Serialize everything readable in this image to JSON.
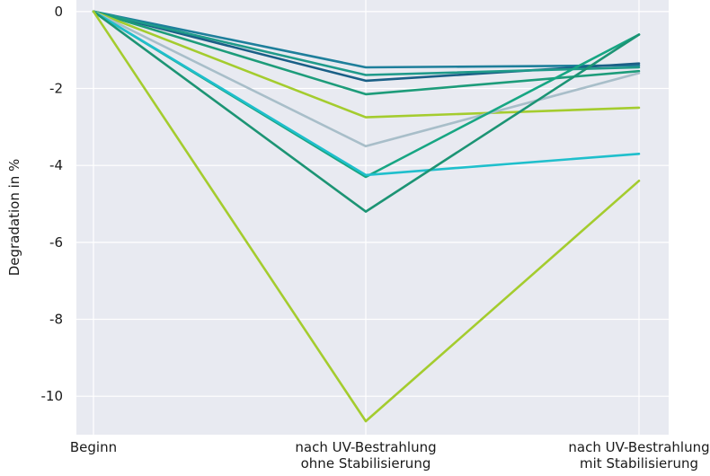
{
  "chart_data": {
    "type": "line",
    "ylabel": "Degradation in %",
    "xlabel": "",
    "title": "",
    "categories": [
      [
        "Beginn"
      ],
      [
        "nach UV-Bestrahlung",
        "ohne Stabilisierung"
      ],
      [
        "nach UV-Bestrahlung",
        "mit Stabilisierung"
      ]
    ],
    "ylim": [
      -11,
      0.3
    ],
    "yticks": [
      0,
      -2,
      -4,
      -6,
      -8,
      -10
    ],
    "grid": true,
    "series": [
      {
        "color": "#1e7f9b",
        "values": [
          0,
          -1.45,
          -1.4
        ]
      },
      {
        "color": "#1a5f86",
        "values": [
          0,
          -1.8,
          -1.35
        ]
      },
      {
        "color": "#1f9a8a",
        "values": [
          0,
          -1.65,
          -1.45
        ]
      },
      {
        "color": "#1d9c7a",
        "values": [
          0,
          -2.15,
          -1.55
        ]
      },
      {
        "color": "#a4cc2e",
        "values": [
          0,
          -2.75,
          -2.5
        ]
      },
      {
        "color": "#a8bec9",
        "values": [
          0,
          -3.5,
          -1.6
        ]
      },
      {
        "color": "#17a683",
        "values": [
          0,
          -4.3,
          -0.6
        ]
      },
      {
        "color": "#1fbfcc",
        "values": [
          0,
          -4.25,
          -3.7
        ]
      },
      {
        "color": "#1c9474",
        "values": [
          0,
          -5.2,
          -0.6
        ]
      },
      {
        "color": "#a4cc2e",
        "values": [
          0,
          -10.65,
          -4.4
        ]
      }
    ]
  }
}
